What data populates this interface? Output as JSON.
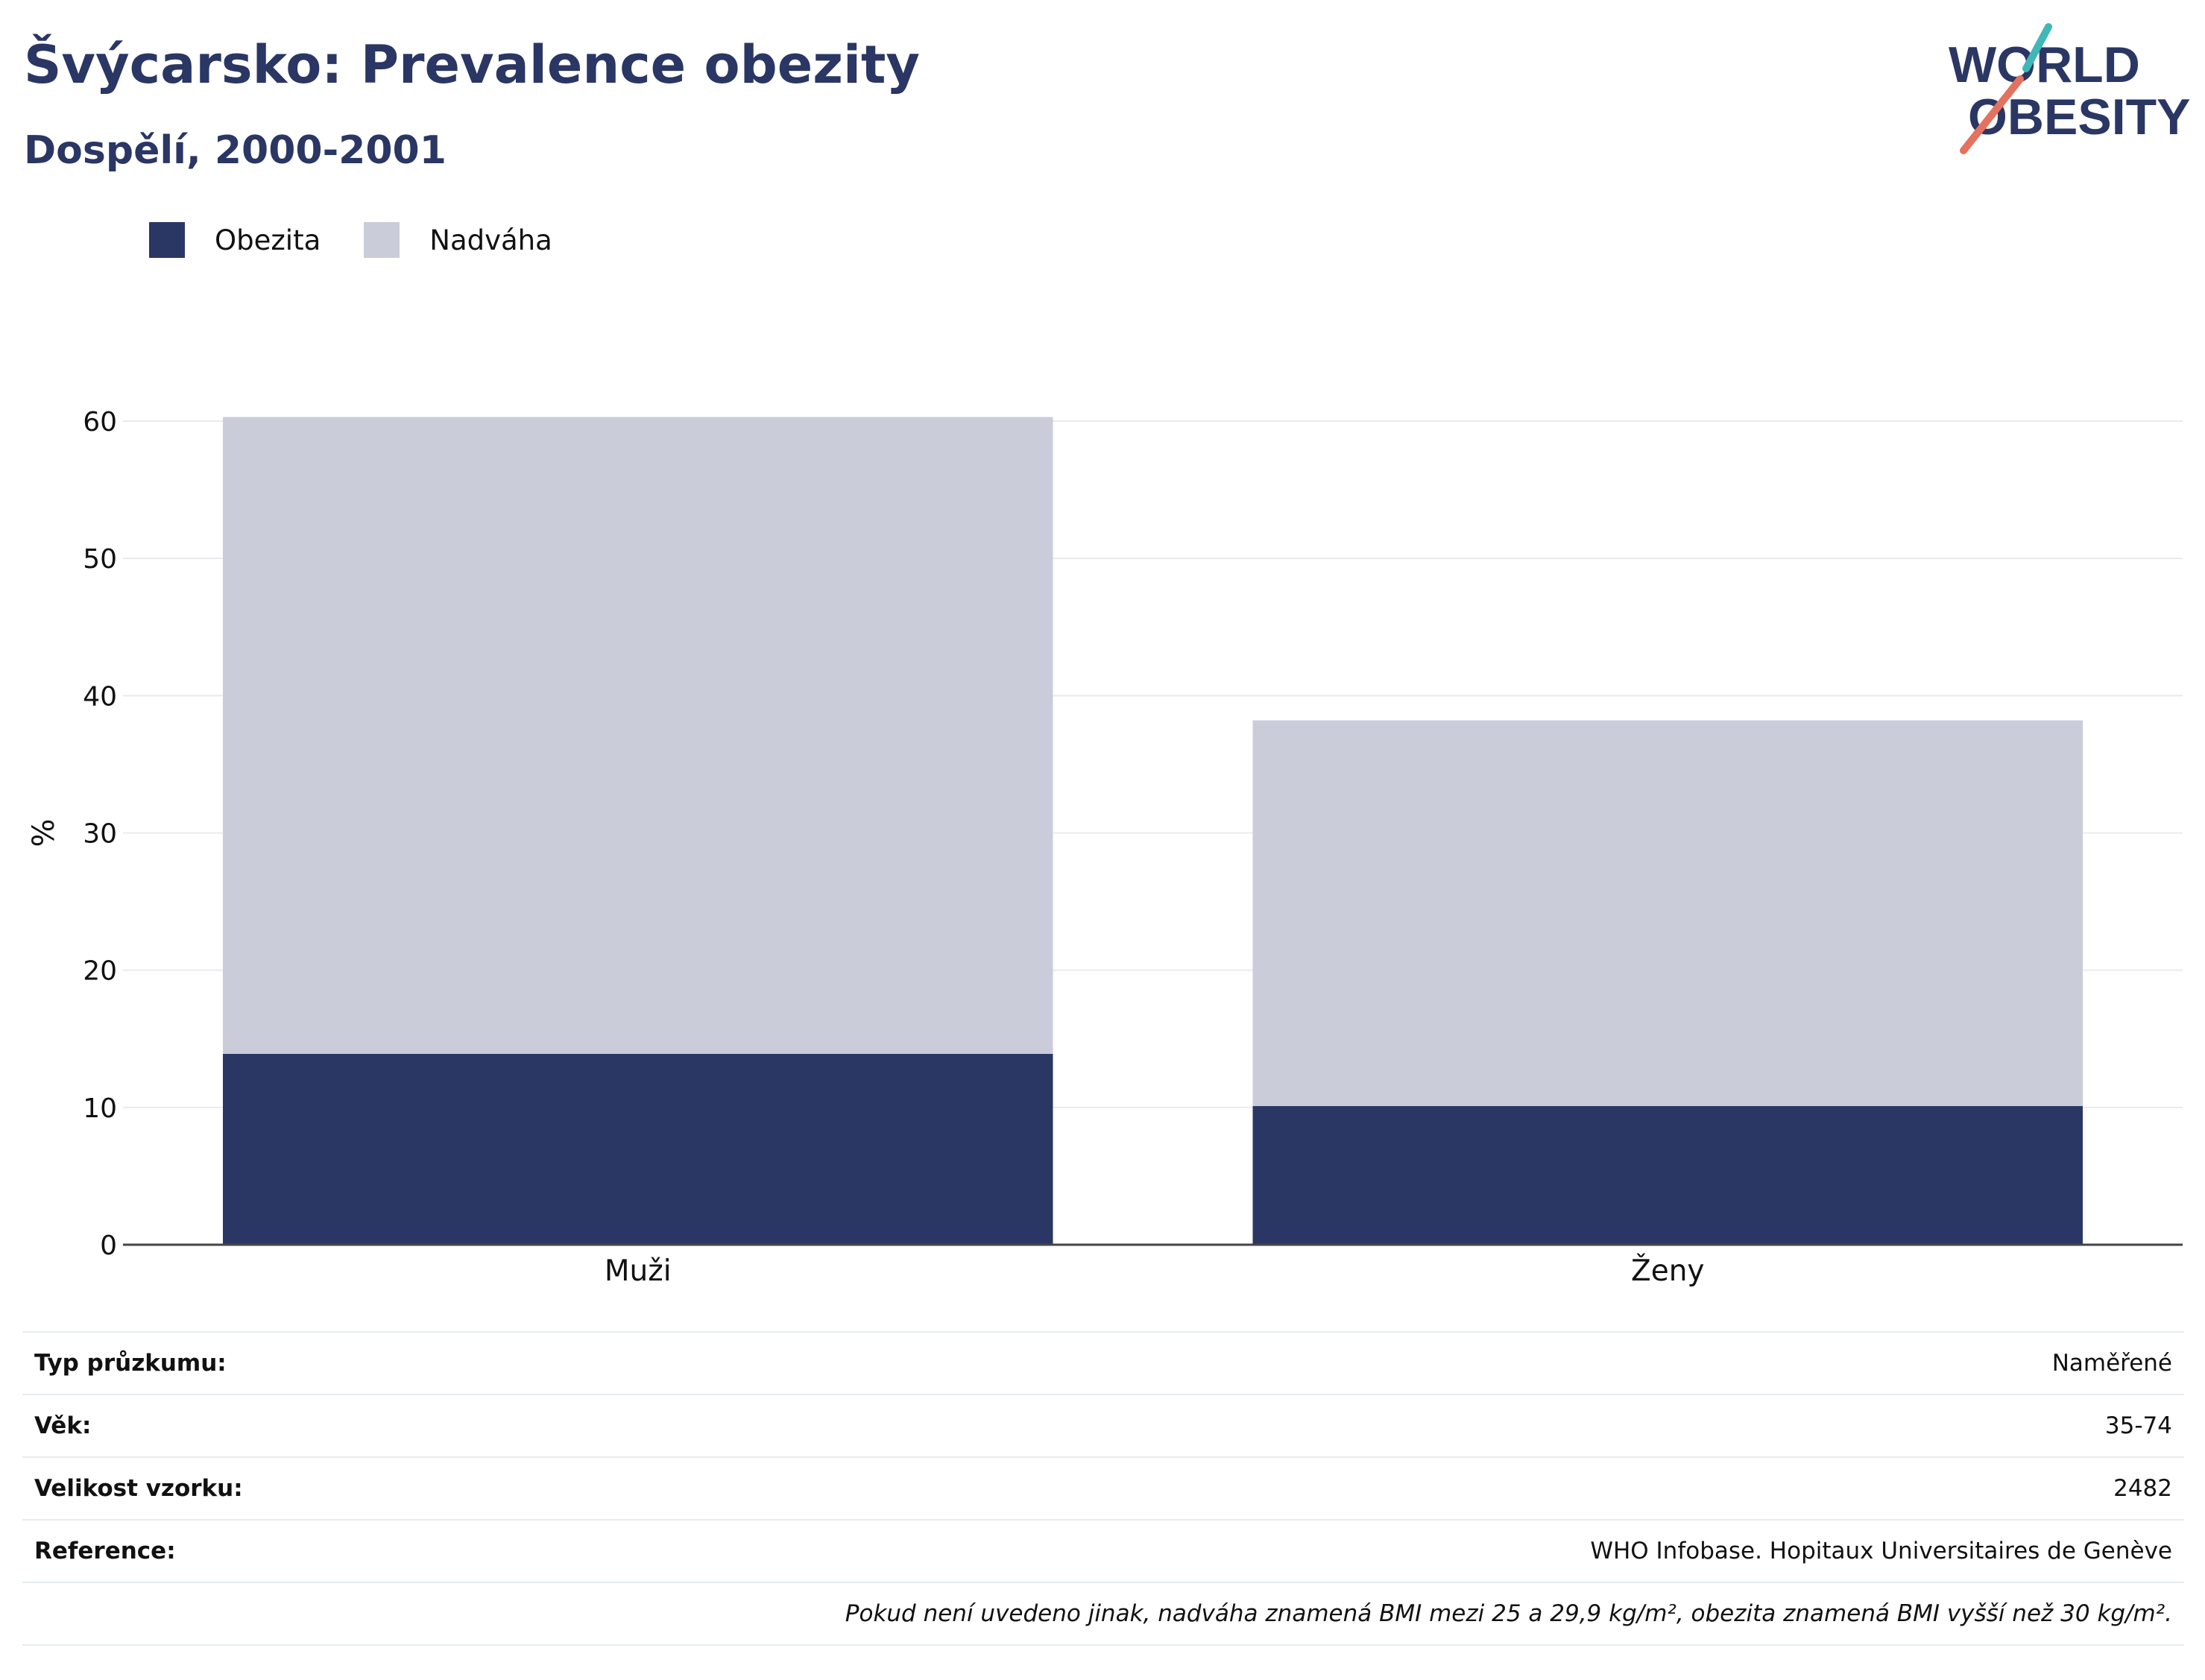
{
  "header": {
    "title": "Švýcarsko: Prevalence obezity",
    "subtitle": "Dospělí, 2000-2001"
  },
  "logo": {
    "line1": "WORLD",
    "line2": "OBESITY"
  },
  "colors": {
    "obesity": "#2a3664",
    "overweight": "#cacdd9",
    "accent_teal": "#3fb8b7",
    "accent_coral": "#e4725f"
  },
  "chart_data": {
    "type": "bar",
    "stacked": true,
    "categories": [
      "Muži",
      "Ženy"
    ],
    "series": [
      {
        "name": "Obezita",
        "values": [
          13.9,
          10.1
        ]
      },
      {
        "name": "Nadváha",
        "values": [
          46.4,
          28.1
        ]
      }
    ],
    "ylabel": "%",
    "ylim": [
      0,
      60
    ],
    "yticks": [
      0,
      10,
      20,
      30,
      40,
      50,
      60
    ],
    "grid": true,
    "legend_position": "top-left"
  },
  "info": [
    {
      "label": "Typ průzkumu:",
      "value": "Naměřené"
    },
    {
      "label": "Věk:",
      "value": "35-74"
    },
    {
      "label": "Velikost vzorku:",
      "value": "2482"
    },
    {
      "label": "Reference:",
      "value": "WHO Infobase. Hopitaux Universitaires de Genève"
    }
  ],
  "note": "Pokud není uvedeno jinak, nadváha znamená BMI mezi 25 a 29,9 kg/m², obezita znamená BMI vyšší než 30 kg/m²."
}
